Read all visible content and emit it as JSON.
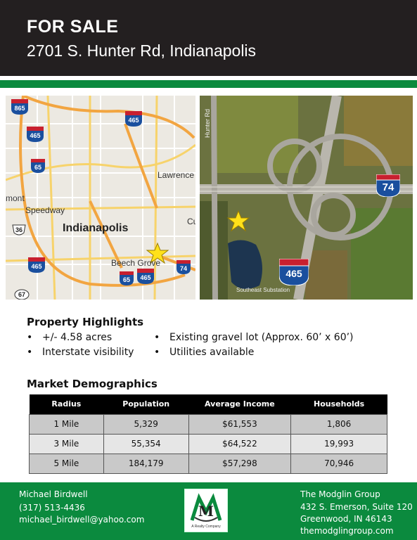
{
  "header": {
    "title": "FOR SALE",
    "address": "2701 S. Hunter Rd, Indianapolis"
  },
  "map": {
    "labels": {
      "city": "Indianapolis",
      "lawrence": "Lawrence",
      "speedway": "Speedway",
      "beech_grove": "Beech Grove",
      "mont": "mont",
      "cu": "Cu"
    },
    "shields": {
      "i865": "865",
      "i465_a": "465",
      "i465_b": "465",
      "i65_a": "65",
      "us36": "36",
      "i465_c": "465",
      "i65_b": "65",
      "i465_d": "465",
      "i74": "74",
      "sr67": "67"
    }
  },
  "aerial": {
    "shields": {
      "i74": "74",
      "i465": "465"
    },
    "labels": {
      "road": "Hunter Rd",
      "station": "Southeast Substation"
    }
  },
  "highlights": {
    "heading": "Property Highlights",
    "items": [
      "+/- 4.58 acres",
      "Interstate visibility",
      "Existing gravel lot (Approx. 60’ x 60’)",
      "Utilities available"
    ]
  },
  "demographics": {
    "heading": "Market Demographics",
    "columns": [
      "Radius",
      "Population",
      "Average Income",
      "Households"
    ],
    "rows": [
      [
        "1 Mile",
        "5,329",
        "$61,553",
        "1,806"
      ],
      [
        "3 Mile",
        "55,354",
        "$64,522",
        "19,993"
      ],
      [
        "5 Mile",
        "184,179",
        "$57,298",
        "70,946"
      ]
    ]
  },
  "footer": {
    "contact_name": "Michael Birdwell",
    "contact_phone": "(317) 513-4436",
    "contact_email": "michael_birdwell@yahoo.com",
    "company": "The Modglin Group",
    "street": "432 S. Emerson, Suite 120",
    "city": "Greenwood, IN 46143",
    "website": "themodglingroup.com",
    "logo_letter": "M",
    "logo_tagline": "A Realty Company"
  },
  "colors": {
    "header_bg": "#231f20",
    "brand_green": "#0b8a3e",
    "interstate_blue": "#1a4f9e",
    "interstate_red": "#c8202f",
    "star": "#ffe11a"
  }
}
